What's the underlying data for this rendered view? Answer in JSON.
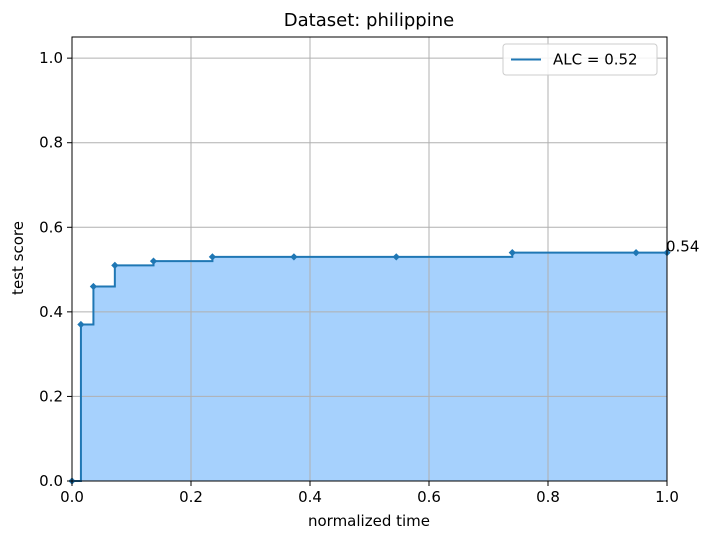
{
  "chart_data": {
    "type": "area",
    "title": "Dataset: philippine",
    "xlabel": "normalized time",
    "ylabel": "test score",
    "xlim": [
      0.0,
      1.0
    ],
    "ylim": [
      0.0,
      1.05
    ],
    "xticks": [
      "0.0",
      "0.2",
      "0.4",
      "0.6",
      "0.8",
      "1.0"
    ],
    "yticks": [
      "0.0",
      "0.2",
      "0.4",
      "0.6",
      "0.8",
      "1.0"
    ],
    "grid": true,
    "legend_position": "top-right",
    "step": "post",
    "series": [
      {
        "name": "ALC = 0.52",
        "color": "#1f77b4",
        "fill_color": "#a6d1fd",
        "x": [
          0.0,
          0.015,
          0.036,
          0.072,
          0.137,
          0.236,
          0.373,
          0.545,
          0.74,
          0.948,
          1.0
        ],
        "y": [
          0.0,
          0.37,
          0.46,
          0.51,
          0.52,
          0.53,
          0.53,
          0.53,
          0.54,
          0.54,
          0.54
        ]
      }
    ],
    "annotations": [
      {
        "text": "0.54",
        "x": 1.0,
        "y": 0.54
      }
    ]
  }
}
